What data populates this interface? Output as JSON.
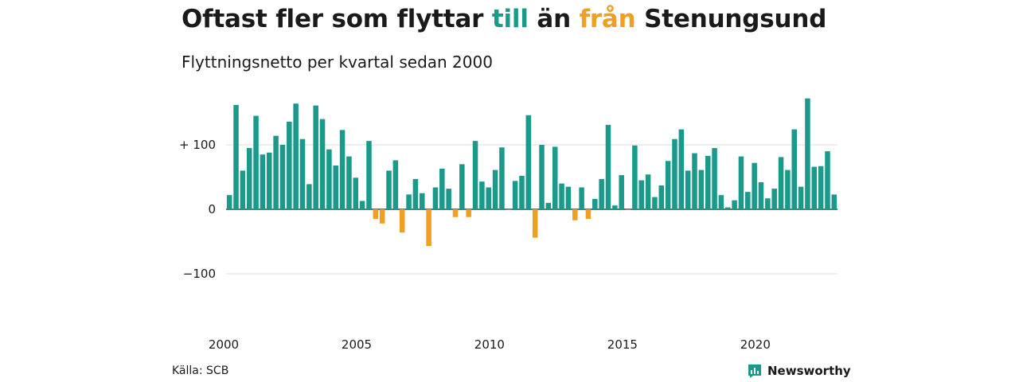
{
  "title": {
    "part1": "Oftast fler som flyttar ",
    "part2": "till",
    "part3": " än ",
    "part4": "från",
    "part5": " Stenungsund"
  },
  "subtitle": "Flyttningsnetto per kvartal sedan 2000",
  "source": "Källa: SCB",
  "logo_text": "Newsworthy",
  "colors": {
    "positive": "#1a9a8a",
    "negative": "#f0a020",
    "text": "#1a1a1a",
    "grid": "#dddddd"
  },
  "chart_data": {
    "type": "bar",
    "title": "Oftast fler som flyttar till än från Stenungsund",
    "subtitle": "Flyttningsnetto per kvartal sedan 2000",
    "x_start": "2000-Q1",
    "x_ticks": [
      "2000",
      "2005",
      "2010",
      "2015",
      "2020"
    ],
    "y_ticks": [
      {
        "value": 100,
        "label": "+ 100"
      },
      {
        "value": 0,
        "label": "0"
      },
      {
        "value": -100,
        "label": "−100"
      }
    ],
    "ylim": [
      -160,
      175
    ],
    "grid": true,
    "values": [
      22,
      162,
      60,
      95,
      145,
      85,
      88,
      114,
      100,
      136,
      164,
      109,
      39,
      161,
      140,
      93,
      68,
      123,
      82,
      49,
      13,
      106,
      -15,
      -22,
      60,
      76,
      -36,
      23,
      47,
      25,
      -57,
      34,
      63,
      32,
      -12,
      70,
      -12,
      106,
      43,
      34,
      61,
      96,
      0,
      44,
      52,
      146,
      -44,
      100,
      10,
      97,
      40,
      35,
      -17,
      34,
      -15,
      16,
      47,
      131,
      6,
      53,
      0,
      99,
      45,
      54,
      19,
      37,
      75,
      109,
      124,
      60,
      87,
      61,
      83,
      95,
      22,
      3,
      14,
      82,
      27,
      72,
      42,
      17,
      32,
      81,
      61,
      124,
      35,
      172,
      66,
      67,
      90,
      23
    ]
  }
}
